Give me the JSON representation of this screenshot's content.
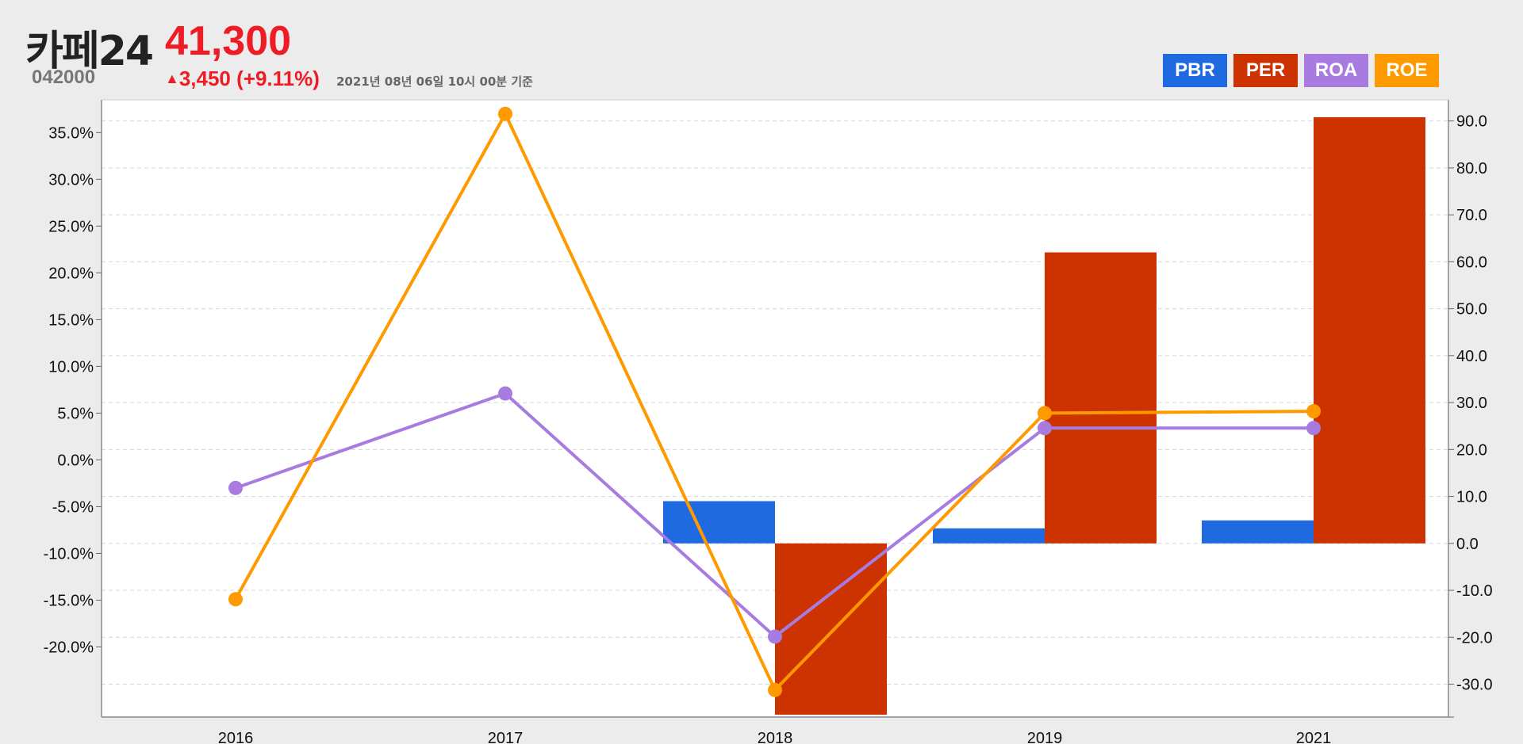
{
  "stock": {
    "name": "카페24",
    "code": "042000",
    "price": "41,300",
    "change_arrow": "▲",
    "change": "3,450 (+9.11%)",
    "timestamp": "2021년 08년 06일 10시 00분 기준"
  },
  "colors": {
    "up": "#ee1c25",
    "PBR": "#1f6ae0",
    "PER": "#cc3300",
    "ROA": "#a77be0",
    "ROE": "#ff9900"
  },
  "chart_data": {
    "type": "bar+line",
    "categories": [
      "2016",
      "2017",
      "2018",
      "2019",
      "2021"
    ],
    "legend": [
      "PBR",
      "PER",
      "ROA",
      "ROE"
    ],
    "legend_position": "top-right",
    "left_axis": {
      "unit": "percent",
      "range": [
        -27.5,
        38.5
      ],
      "ticks": [
        35,
        30,
        25,
        20,
        15,
        10,
        5,
        0,
        -5,
        -10,
        -15,
        -20
      ],
      "tick_labels": [
        "35.0%",
        "30.0%",
        "25.0%",
        "20.0%",
        "15.0%",
        "10.0%",
        "5.0%",
        "0.0%",
        "-5.0%",
        "-10.0%",
        "-15.0%",
        "-20.0%"
      ]
    },
    "right_axis": {
      "range": [
        -37,
        94.5
      ],
      "ticks": [
        90,
        80,
        70,
        60,
        50,
        40,
        30,
        20,
        10,
        0,
        -10,
        -20,
        -30
      ],
      "tick_labels": [
        "90.0",
        "80.0",
        "70.0",
        "60.0",
        "50.0",
        "40.0",
        "30.0",
        "20.0",
        "10.0",
        "0.0",
        "-10.0",
        "-20.0",
        "-30.0"
      ]
    },
    "grid": true,
    "bar_series": [
      {
        "name": "PBR",
        "axis": "right",
        "values": [
          null,
          null,
          9.0,
          3.2,
          4.9
        ]
      },
      {
        "name": "PER",
        "axis": "right",
        "values": [
          null,
          null,
          -36.5,
          62.0,
          90.8
        ]
      }
    ],
    "line_series": [
      {
        "name": "ROA",
        "axis": "left",
        "values": [
          -3.0,
          7.1,
          -18.9,
          3.4,
          3.4
        ]
      },
      {
        "name": "ROE",
        "axis": "left",
        "values": [
          -14.9,
          37.0,
          -24.6,
          5.0,
          5.2
        ]
      }
    ]
  }
}
